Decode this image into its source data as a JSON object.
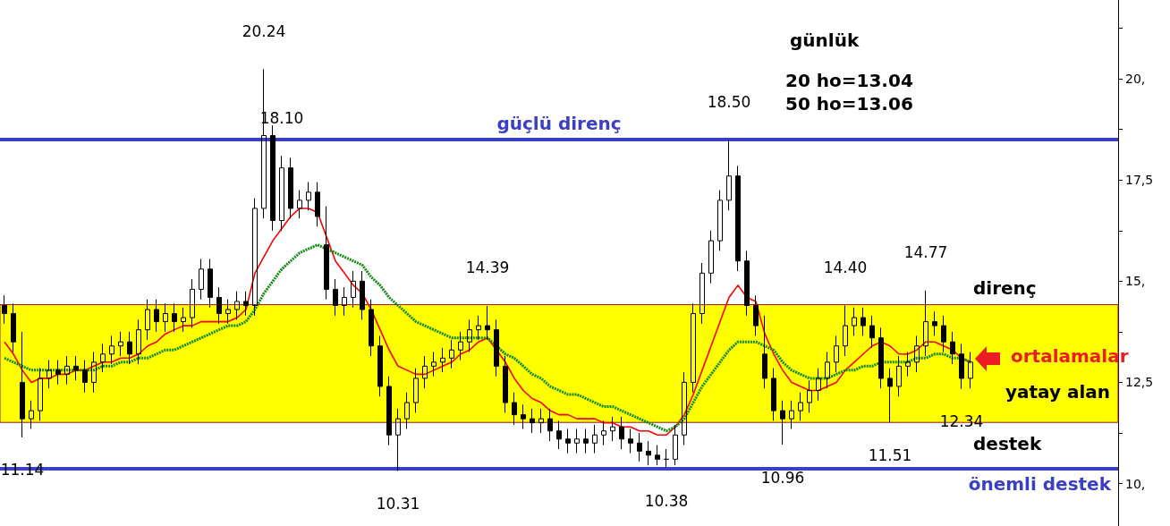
{
  "chart_data": {
    "type": "candlestick",
    "title": "günlük",
    "color": "#000000",
    "categories": [
      null,
      null,
      null,
      null,
      null,
      null,
      null,
      null,
      null,
      null,
      null,
      null,
      null,
      null,
      null,
      null,
      null,
      null,
      null,
      null,
      null,
      null,
      null,
      null,
      null,
      null,
      null,
      null,
      null,
      null,
      null,
      null,
      null,
      null,
      null,
      null,
      null,
      null,
      null,
      null,
      null,
      null,
      null,
      null,
      null,
      null,
      null,
      null,
      null,
      null,
      null,
      null,
      null,
      null,
      null,
      null,
      null,
      null,
      null,
      null,
      null,
      null,
      null,
      null,
      null,
      null,
      null,
      null,
      null,
      null,
      null,
      null,
      null,
      null,
      null,
      null,
      null,
      null,
      null,
      null,
      null,
      null,
      null,
      null,
      null,
      null,
      null,
      null,
      null,
      null,
      null,
      null,
      null,
      null,
      null,
      null,
      null,
      null,
      null,
      null,
      null,
      null,
      null,
      null,
      null,
      null,
      null,
      null,
      null,
      null,
      null,
      null,
      null,
      null,
      null,
      null,
      null,
      null,
      null,
      null,
      null,
      null,
      null,
      null,
      null
    ],
    "ohlc": [
      [
        14.4,
        14.65,
        13.95,
        14.2
      ],
      [
        14.2,
        14.45,
        13.25,
        13.5
      ],
      [
        12.5,
        13.75,
        11.14,
        11.6
      ],
      [
        11.6,
        12.05,
        11.35,
        11.8
      ],
      [
        11.8,
        12.85,
        11.55,
        12.6
      ],
      [
        12.6,
        13.05,
        12.35,
        12.8
      ],
      [
        12.8,
        13.05,
        12.45,
        12.7
      ],
      [
        12.7,
        13.15,
        12.45,
        12.9
      ],
      [
        12.9,
        13.15,
        12.55,
        12.8
      ],
      [
        12.8,
        13.05,
        12.25,
        12.5
      ],
      [
        12.5,
        13.25,
        12.25,
        13.0
      ],
      [
        13.0,
        13.45,
        12.75,
        13.2
      ],
      [
        13.2,
        13.65,
        12.95,
        13.4
      ],
      [
        13.4,
        13.75,
        13.15,
        13.5
      ],
      [
        13.5,
        13.75,
        12.95,
        13.2
      ],
      [
        13.2,
        14.05,
        12.95,
        13.8
      ],
      [
        13.8,
        14.55,
        13.55,
        14.3
      ],
      [
        14.3,
        14.55,
        13.75,
        14.0
      ],
      [
        14.0,
        14.45,
        13.75,
        14.2
      ],
      [
        14.2,
        14.45,
        13.75,
        14.0
      ],
      [
        14.0,
        14.35,
        13.75,
        14.1
      ],
      [
        14.1,
        15.05,
        13.85,
        14.8
      ],
      [
        14.8,
        15.55,
        14.55,
        15.3
      ],
      [
        15.3,
        15.55,
        14.35,
        14.6
      ],
      [
        14.6,
        14.85,
        13.95,
        14.2
      ],
      [
        14.2,
        14.55,
        13.95,
        14.3
      ],
      [
        14.3,
        14.75,
        14.05,
        14.5
      ],
      [
        14.5,
        14.75,
        14.15,
        14.4
      ],
      [
        14.4,
        17.05,
        14.15,
        16.8
      ],
      [
        16.8,
        20.24,
        16.55,
        18.6
      ],
      [
        18.6,
        18.85,
        16.25,
        16.5
      ],
      [
        16.5,
        18.1,
        16.25,
        17.8
      ],
      [
        17.8,
        18.05,
        16.55,
        16.8
      ],
      [
        16.8,
        17.25,
        16.55,
        17.0
      ],
      [
        17.0,
        17.45,
        16.75,
        17.2
      ],
      [
        17.2,
        17.45,
        16.35,
        16.6
      ],
      [
        15.9,
        16.85,
        14.55,
        14.8
      ],
      [
        14.8,
        15.05,
        14.15,
        14.4
      ],
      [
        14.4,
        14.85,
        14.15,
        14.6
      ],
      [
        14.6,
        15.25,
        14.35,
        15.0
      ],
      [
        15.0,
        15.25,
        14.05,
        14.3
      ],
      [
        14.3,
        14.55,
        13.15,
        13.4
      ],
      [
        13.4,
        13.65,
        12.15,
        12.4
      ],
      [
        12.4,
        12.65,
        10.95,
        11.2
      ],
      [
        11.2,
        11.85,
        10.31,
        11.6
      ],
      [
        11.6,
        12.25,
        11.35,
        12.0
      ],
      [
        12.0,
        12.85,
        11.75,
        12.6
      ],
      [
        12.6,
        13.15,
        12.35,
        12.9
      ],
      [
        12.9,
        13.25,
        12.65,
        13.0
      ],
      [
        13.0,
        13.35,
        12.75,
        13.1
      ],
      [
        13.1,
        13.55,
        12.85,
        13.3
      ],
      [
        13.3,
        13.75,
        13.05,
        13.5
      ],
      [
        13.5,
        14.05,
        13.25,
        13.8
      ],
      [
        13.8,
        14.15,
        13.55,
        13.9
      ],
      [
        13.9,
        14.39,
        13.55,
        13.8
      ],
      [
        13.8,
        14.05,
        12.65,
        12.9
      ],
      [
        12.9,
        13.15,
        11.75,
        12.0
      ],
      [
        12.0,
        12.25,
        11.45,
        11.7
      ],
      [
        11.7,
        11.95,
        11.35,
        11.6
      ],
      [
        11.6,
        11.85,
        11.25,
        11.5
      ],
      [
        11.5,
        11.85,
        11.25,
        11.6
      ],
      [
        11.6,
        11.85,
        11.05,
        11.3
      ],
      [
        11.3,
        11.55,
        10.85,
        11.1
      ],
      [
        11.1,
        11.35,
        10.75,
        11.0
      ],
      [
        11.0,
        11.35,
        10.75,
        11.1
      ],
      [
        11.1,
        11.35,
        10.75,
        11.0
      ],
      [
        11.0,
        11.45,
        10.75,
        11.2
      ],
      [
        11.2,
        11.55,
        10.95,
        11.3
      ],
      [
        11.3,
        11.65,
        11.05,
        11.4
      ],
      [
        11.4,
        11.65,
        10.85,
        11.1
      ],
      [
        11.1,
        11.35,
        10.75,
        11.0
      ],
      [
        11.0,
        11.25,
        10.55,
        10.8
      ],
      [
        10.8,
        11.05,
        10.45,
        10.7
      ],
      [
        10.7,
        10.95,
        10.45,
        10.6
      ],
      [
        10.6,
        10.85,
        10.38,
        10.6
      ],
      [
        10.6,
        11.45,
        10.45,
        11.2
      ],
      [
        11.2,
        12.75,
        10.95,
        12.5
      ],
      [
        12.5,
        14.45,
        12.25,
        14.2
      ],
      [
        14.2,
        15.45,
        13.95,
        15.2
      ],
      [
        15.2,
        16.25,
        14.95,
        16.0
      ],
      [
        16.0,
        17.25,
        15.75,
        17.0
      ],
      [
        17.0,
        18.5,
        16.75,
        17.6
      ],
      [
        17.6,
        17.85,
        15.25,
        15.5
      ],
      [
        15.5,
        15.75,
        14.15,
        14.4
      ],
      [
        14.4,
        14.65,
        13.65,
        13.9
      ],
      [
        13.2,
        14.15,
        12.35,
        12.6
      ],
      [
        12.6,
        12.85,
        11.55,
        11.8
      ],
      [
        11.8,
        12.05,
        10.96,
        11.6
      ],
      [
        11.6,
        12.05,
        11.35,
        11.8
      ],
      [
        11.8,
        12.25,
        11.55,
        12.0
      ],
      [
        12.0,
        12.55,
        11.75,
        12.3
      ],
      [
        12.3,
        12.85,
        12.05,
        12.6
      ],
      [
        12.6,
        13.25,
        12.35,
        13.0
      ],
      [
        13.0,
        13.65,
        12.75,
        13.4
      ],
      [
        13.4,
        14.4,
        13.15,
        13.9
      ],
      [
        13.9,
        14.35,
        13.65,
        14.1
      ],
      [
        14.1,
        14.35,
        13.65,
        13.9
      ],
      [
        13.9,
        14.15,
        13.35,
        13.6
      ],
      [
        13.6,
        13.85,
        12.35,
        12.6
      ],
      [
        12.6,
        12.85,
        11.51,
        12.4
      ],
      [
        12.4,
        13.15,
        12.15,
        12.9
      ],
      [
        12.9,
        13.25,
        12.65,
        13.0
      ],
      [
        13.0,
        13.65,
        12.75,
        13.4
      ],
      [
        13.4,
        14.77,
        13.15,
        14.0
      ],
      [
        14.0,
        14.25,
        13.65,
        13.9
      ],
      [
        13.9,
        14.15,
        13.25,
        13.5
      ],
      [
        13.5,
        13.75,
        12.95,
        13.2
      ],
      [
        13.2,
        13.45,
        12.34,
        12.6
      ],
      [
        12.6,
        13.25,
        12.35,
        13.0
      ],
      null,
      null,
      null,
      null,
      null,
      null,
      null,
      null,
      null,
      null,
      null,
      null,
      null,
      null,
      null,
      null
    ],
    "series": [
      {
        "type": "line",
        "color": "#ff0000",
        "line_style": "solid",
        "values": [
          13.5,
          13.2,
          12.8,
          12.5,
          12.6,
          12.6,
          12.7,
          12.7,
          12.8,
          12.8,
          12.9,
          13.0,
          13.0,
          13.1,
          13.1,
          13.2,
          13.4,
          13.5,
          13.7,
          13.8,
          13.9,
          13.9,
          14.0,
          14.0,
          14.0,
          14.0,
          14.1,
          14.3,
          15.2,
          15.6,
          16.0,
          16.3,
          16.6,
          16.8,
          16.8,
          16.7,
          16.1,
          15.5,
          15.2,
          14.9,
          14.7,
          14.3,
          13.8,
          13.3,
          12.9,
          12.8,
          12.7,
          12.7,
          12.8,
          12.9,
          13.0,
          13.2,
          13.3,
          13.5,
          13.6,
          13.3,
          13.0,
          12.6,
          12.3,
          12.1,
          12.0,
          11.8,
          11.7,
          11.7,
          11.6,
          11.6,
          11.6,
          11.5,
          11.5,
          11.4,
          11.4,
          11.3,
          11.3,
          11.2,
          11.2,
          11.4,
          11.7,
          12.2,
          12.8,
          13.4,
          14.0,
          14.6,
          14.9,
          14.6,
          14.5,
          13.7,
          13.2,
          12.8,
          12.5,
          12.4,
          12.3,
          12.3,
          12.4,
          12.5,
          12.8,
          13.0,
          13.2,
          13.4,
          13.5,
          13.4,
          13.2,
          13.2,
          13.3,
          13.5,
          13.5,
          13.4,
          13.3,
          13.1,
          13.0,
          null,
          null,
          null,
          null,
          null,
          null,
          null,
          null,
          null,
          null,
          null,
          null,
          null,
          null,
          null,
          null
        ]
      },
      {
        "type": "line",
        "color": "#138a13",
        "line_style": "dotted",
        "values": [
          13.1,
          13.0,
          12.9,
          12.8,
          12.8,
          12.8,
          12.8,
          12.8,
          12.8,
          12.8,
          12.8,
          12.9,
          12.9,
          13.0,
          13.0,
          13.1,
          13.1,
          13.2,
          13.3,
          13.3,
          13.4,
          13.5,
          13.6,
          13.7,
          13.8,
          13.9,
          13.9,
          14.0,
          14.3,
          14.7,
          15.0,
          15.3,
          15.5,
          15.7,
          15.8,
          15.9,
          15.8,
          15.7,
          15.6,
          15.5,
          15.4,
          15.1,
          14.9,
          14.6,
          14.4,
          14.2,
          14.0,
          13.9,
          13.8,
          13.7,
          13.6,
          13.6,
          13.6,
          13.6,
          13.6,
          13.4,
          13.2,
          13.1,
          12.9,
          12.7,
          12.6,
          12.4,
          12.3,
          12.2,
          12.2,
          12.1,
          12.0,
          11.9,
          11.9,
          11.8,
          11.7,
          11.6,
          11.5,
          11.4,
          11.3,
          11.4,
          11.6,
          12.0,
          12.4,
          12.7,
          13.0,
          13.3,
          13.5,
          13.5,
          13.5,
          13.4,
          13.3,
          13.0,
          12.8,
          12.7,
          12.6,
          12.6,
          12.6,
          12.7,
          12.8,
          12.8,
          12.9,
          12.9,
          13.0,
          13.0,
          13.0,
          13.0,
          13.1,
          13.1,
          13.2,
          13.2,
          13.1,
          13.1,
          13.0,
          null,
          null,
          null,
          null,
          null,
          null,
          null,
          null,
          null,
          null,
          null,
          null,
          null,
          null,
          null,
          null
        ]
      }
    ],
    "ylim": [
      8.95,
      21.95
    ],
    "yticks": [
      {
        "value": 10,
        "label": "10,"
      },
      {
        "value": 11.25,
        "label": null
      },
      {
        "value": 12.5,
        "label": "12,5"
      },
      {
        "value": 13.75,
        "label": null
      },
      {
        "value": 15,
        "label": "15,"
      },
      {
        "value": 16.25,
        "label": null
      },
      {
        "value": 17.5,
        "label": "17,5"
      },
      {
        "value": 18.75,
        "label": null
      },
      {
        "value": 20,
        "label": "20,"
      },
      {
        "value": 21.25,
        "label": null
      }
    ],
    "ref_lines": [
      {
        "axis": "y",
        "value": 18.5,
        "label": "güçlü direnç",
        "color": "#3a3fc4"
      },
      {
        "axis": "y",
        "value": 10.38,
        "label": "önemli destek",
        "color": "#3a3fc4"
      }
    ],
    "bands": [
      {
        "axis": "y",
        "from": 11.51,
        "to": 14.42,
        "color": "#ffff00"
      }
    ],
    "annotations": [
      {
        "text": "20.24",
        "y": 20.24
      },
      {
        "text": "18.10",
        "y": 18.1
      },
      {
        "text": "18.50",
        "y": 18.5
      },
      {
        "text": "14.39",
        "y": 14.39
      },
      {
        "text": "14.40",
        "y": 14.4
      },
      {
        "text": "14.77",
        "y": 14.77
      },
      {
        "text": "11.14",
        "y": 11.14
      },
      {
        "text": "10.31",
        "y": 10.31
      },
      {
        "text": "10.38",
        "y": 10.38
      },
      {
        "text": "10.96",
        "y": 10.96
      },
      {
        "text": "11.51",
        "y": 11.51
      },
      {
        "text": "12.34",
        "y": 12.34
      },
      "20 ho=13.04",
      "50 ho=13.06",
      "direnç",
      "destek",
      "yatay alan",
      "ortalamalar"
    ],
    "grid": false
  }
}
